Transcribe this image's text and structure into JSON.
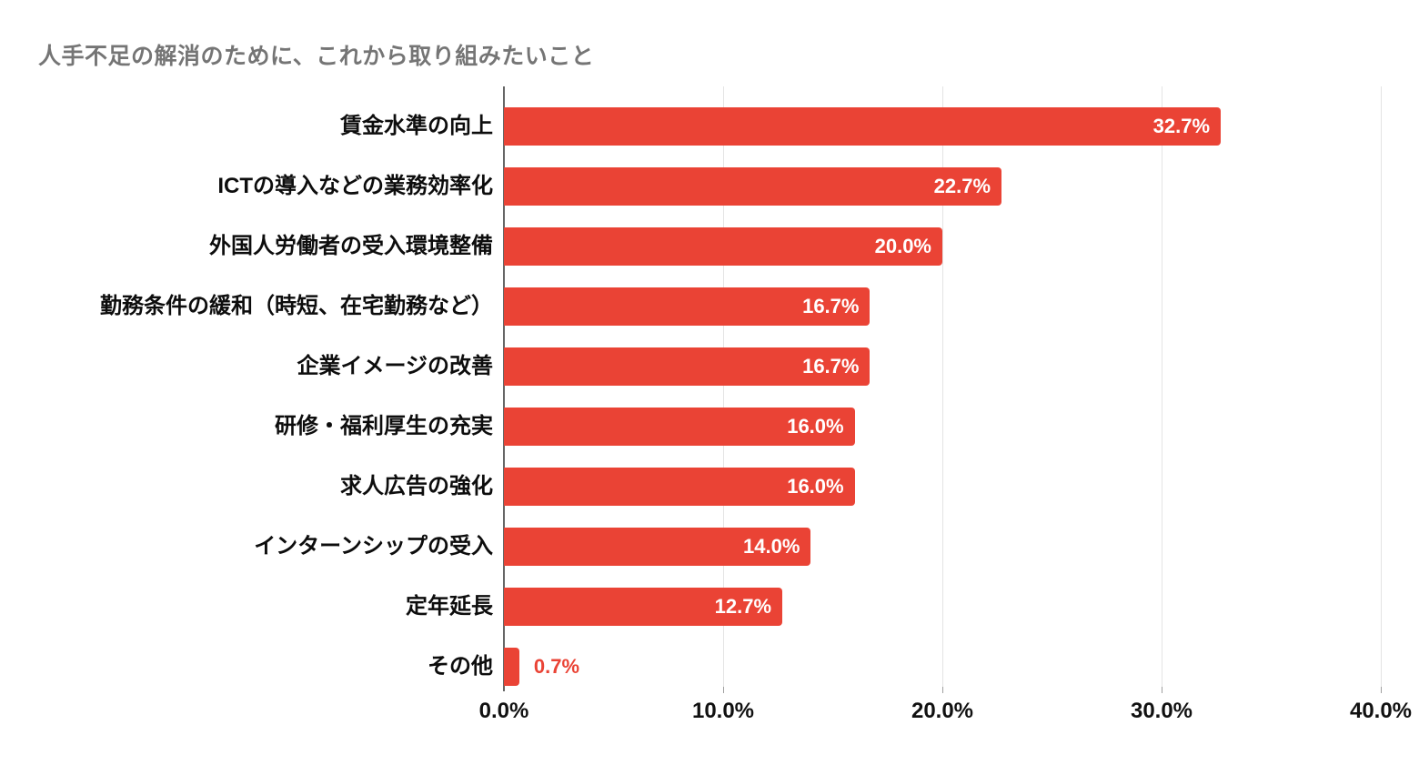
{
  "chart_data": {
    "type": "bar",
    "orientation": "horizontal",
    "title": "人手不足の解消のために、これから取り組みたいこと",
    "categories": [
      "賃金水準の向上",
      "ICTの導入などの業務効率化",
      "外国人労働者の受入環境整備",
      "勤務条件の緩和（時短、在宅勤務など）",
      "企業イメージの改善",
      "研修・福利厚生の充実",
      "求人広告の強化",
      "インターンシップの受入",
      "定年延長",
      "その他"
    ],
    "values": [
      32.7,
      22.7,
      20.0,
      16.7,
      16.7,
      16.0,
      16.0,
      14.0,
      12.7,
      0.7
    ],
    "value_labels": [
      "32.7%",
      "22.7%",
      "20.0%",
      "16.7%",
      "16.7%",
      "16.0%",
      "16.0%",
      "14.0%",
      "12.7%",
      "0.7%"
    ],
    "x_tick_labels": [
      "0.0%",
      "10.0%",
      "20.0%",
      "30.0%",
      "40.0%"
    ],
    "x_tick_values": [
      0,
      10,
      20,
      30,
      40
    ],
    "xlim": [
      0,
      40
    ],
    "xlabel": "",
    "ylabel": "",
    "grid": "vertical-only",
    "legend": "none",
    "colors": {
      "bar": "#ea4335",
      "value_label_inside": "#ffffff",
      "value_label_outside": "#ea4335",
      "title": "#757575",
      "axis_labels": "#111111",
      "gridline": "#e4e4e4",
      "axis_line": "#666666",
      "tick": "#9e9e9e",
      "background": "#ffffff"
    }
  }
}
